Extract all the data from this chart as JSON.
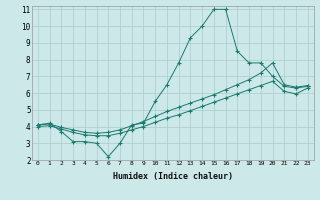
{
  "xlabel": "Humidex (Indice chaleur)",
  "background_color": "#cce8e8",
  "grid_color": "#aacccc",
  "line_color": "#1a7a6e",
  "xlim": [
    -0.5,
    23.5
  ],
  "ylim": [
    2,
    11.2
  ],
  "xticks": [
    0,
    1,
    2,
    3,
    4,
    5,
    6,
    7,
    8,
    9,
    10,
    11,
    12,
    13,
    14,
    15,
    16,
    17,
    18,
    19,
    20,
    21,
    22,
    23
  ],
  "yticks": [
    2,
    3,
    4,
    5,
    6,
    7,
    8,
    9,
    10,
    11
  ],
  "series": [
    {
      "x": [
        0,
        1,
        2,
        3,
        4,
        5,
        6,
        7,
        8,
        9,
        10,
        11,
        12,
        13,
        14,
        15,
        16,
        17,
        18,
        19,
        20,
        21,
        22,
        23
      ],
      "y": [
        4.1,
        4.2,
        3.7,
        3.1,
        3.1,
        3.0,
        2.2,
        3.0,
        4.1,
        4.2,
        5.5,
        6.5,
        7.8,
        9.3,
        10.0,
        11.0,
        11.0,
        8.5,
        7.8,
        7.8,
        7.0,
        6.4,
        6.3,
        6.4
      ]
    },
    {
      "x": [
        0,
        1,
        2,
        3,
        4,
        5,
        6,
        7,
        8,
        9,
        10,
        11,
        12,
        13,
        14,
        15,
        16,
        17,
        18,
        19,
        20,
        21,
        22,
        23
      ],
      "y": [
        4.1,
        4.15,
        3.95,
        3.8,
        3.65,
        3.6,
        3.65,
        3.8,
        4.05,
        4.3,
        4.6,
        4.9,
        5.15,
        5.4,
        5.65,
        5.9,
        6.2,
        6.5,
        6.8,
        7.2,
        7.8,
        6.5,
        6.35,
        6.45
      ]
    },
    {
      "x": [
        0,
        1,
        2,
        3,
        4,
        5,
        6,
        7,
        8,
        9,
        10,
        11,
        12,
        13,
        14,
        15,
        16,
        17,
        18,
        19,
        20,
        21,
        22,
        23
      ],
      "y": [
        4.0,
        4.05,
        3.85,
        3.65,
        3.5,
        3.45,
        3.45,
        3.6,
        3.8,
        4.0,
        4.25,
        4.5,
        4.7,
        4.95,
        5.2,
        5.45,
        5.7,
        5.95,
        6.2,
        6.45,
        6.7,
        6.1,
        5.95,
        6.3
      ]
    }
  ]
}
